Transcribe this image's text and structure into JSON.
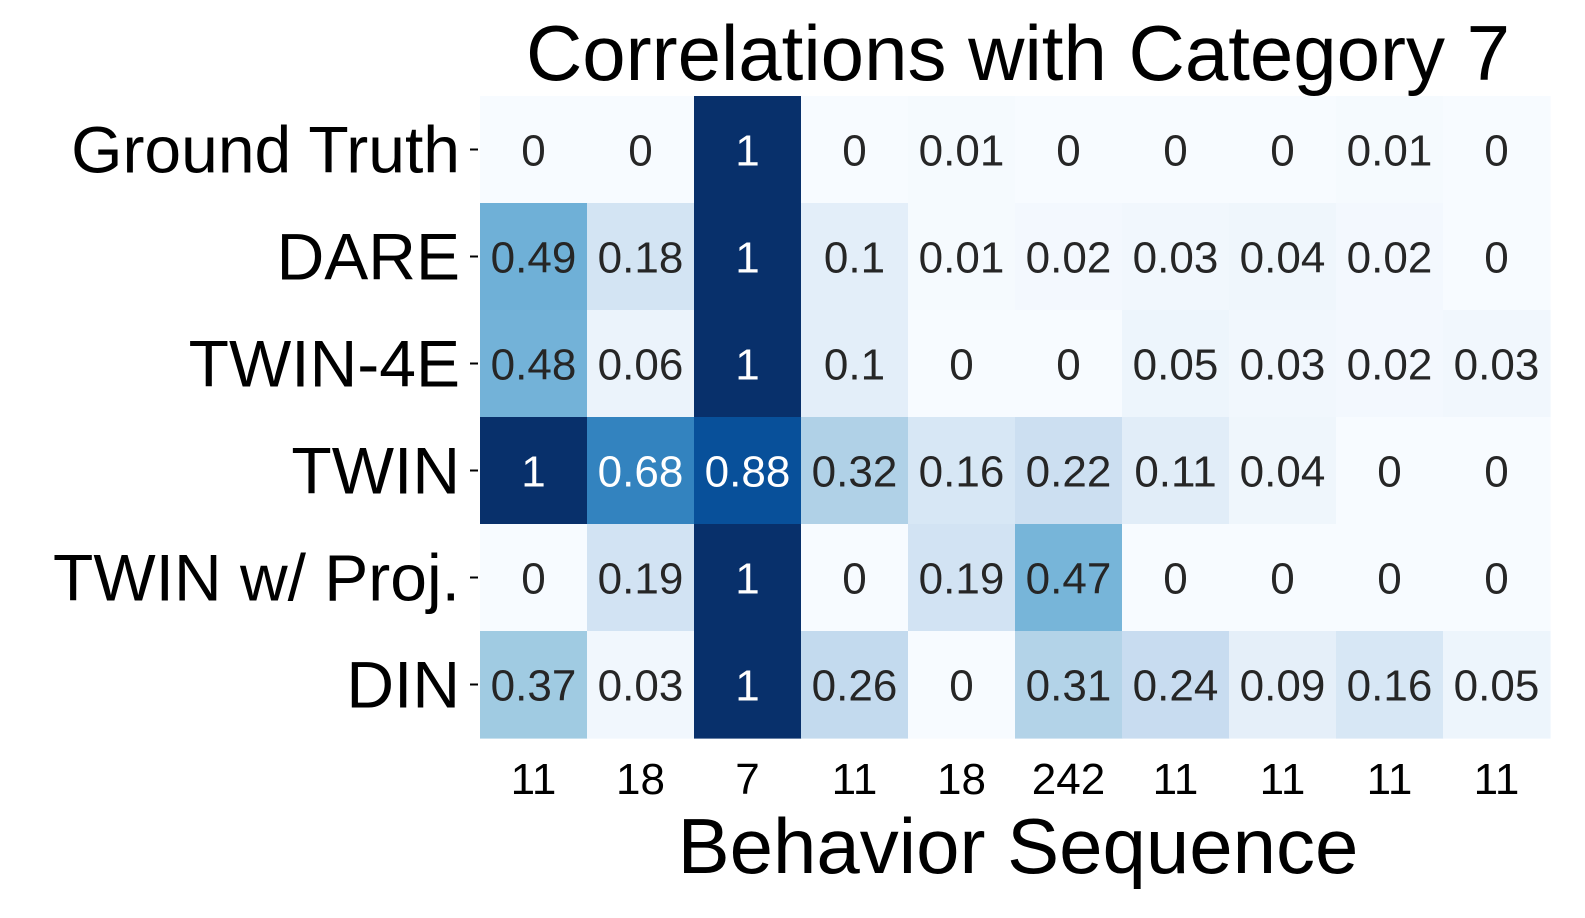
{
  "chart_data": {
    "type": "heatmap",
    "title": "Correlations with Category 7",
    "xlabel": "Behavior Sequence",
    "ylabel": "",
    "rows": [
      "Ground Truth",
      "DARE",
      "TWIN-4E",
      "TWIN",
      "TWIN w/ Proj.",
      "DIN"
    ],
    "columns": [
      "11",
      "18",
      "7",
      "11",
      "18",
      "242",
      "11",
      "11",
      "11",
      "11"
    ],
    "values": [
      [
        0,
        0,
        1,
        0,
        0.01,
        0,
        0,
        0,
        0.01,
        0
      ],
      [
        0.49,
        0.18,
        1,
        0.1,
        0.01,
        0.02,
        0.03,
        0.04,
        0.02,
        0
      ],
      [
        0.48,
        0.06,
        1,
        0.1,
        0,
        0,
        0.05,
        0.03,
        0.02,
        0.03
      ],
      [
        1,
        0.68,
        0.88,
        0.32,
        0.16,
        0.22,
        0.11,
        0.04,
        0,
        0
      ],
      [
        0,
        0.19,
        1,
        0,
        0.19,
        0.47,
        0,
        0,
        0,
        0
      ],
      [
        0.37,
        0.03,
        1,
        0.26,
        0,
        0.31,
        0.24,
        0.09,
        0.16,
        0.05
      ]
    ],
    "value_range": [
      0,
      1
    ],
    "colormap": "Blues",
    "colors": {
      "low": "#f7fbff",
      "high": "#08306b",
      "dark_text": "#262626",
      "light_text": "#ffffff"
    },
    "grid": false,
    "colorbar": false
  }
}
